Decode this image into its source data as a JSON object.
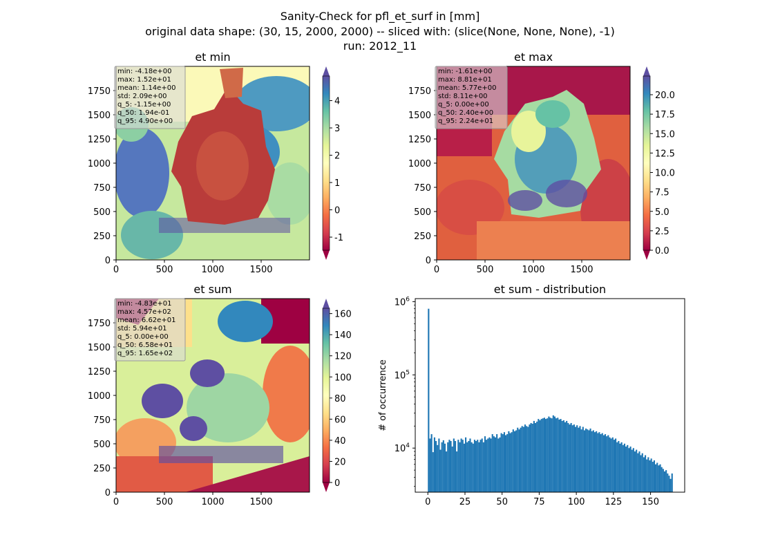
{
  "suptitle": [
    "Sanity-Check for pfl_et_surf in [mm]",
    "original data shape: (30, 15, 2000, 2000) -- sliced with: (slice(None, None, None), -1)",
    "run: 2012_11"
  ],
  "chart_data": [
    {
      "type": "heatmap",
      "title": "et min",
      "x_ticks": [
        "0",
        "500",
        "1000",
        "1500"
      ],
      "y_ticks": [
        "0",
        "250",
        "500",
        "750",
        "1000",
        "1250",
        "1500",
        "1750"
      ],
      "xlim": [
        0,
        2000
      ],
      "ylim": [
        0,
        2000
      ],
      "colormap": "Spectral",
      "color_range": [
        -1.48,
        4.9
      ],
      "colorbar_ticks": [
        "-1",
        "0",
        "1",
        "2",
        "3",
        "4"
      ],
      "colorbar_tick_values": [
        -1,
        0,
        1,
        2,
        3,
        4
      ],
      "colorbar_extend": "both",
      "stats": [
        "min: -4.18e+00",
        "max: 1.52e+01",
        "mean: 1.14e+00",
        "std: 2.09e+00",
        "q_5: -1.15e+00",
        "q_50: 1.94e-01",
        "q_95: 4.90e+00"
      ],
      "stats_placement": "top-left"
    },
    {
      "type": "heatmap",
      "title": "et max",
      "x_ticks": [
        "0",
        "500",
        "1000",
        "1500"
      ],
      "y_ticks": [
        "0",
        "250",
        "500",
        "750",
        "1000",
        "1250",
        "1500",
        "1750"
      ],
      "xlim": [
        0,
        2000
      ],
      "ylim": [
        0,
        2000
      ],
      "colormap": "Spectral",
      "color_range": [
        0,
        22.4
      ],
      "colorbar_ticks": [
        "0.0",
        "2.5",
        "5.0",
        "7.5",
        "10.0",
        "12.5",
        "15.0",
        "17.5",
        "20.0"
      ],
      "colorbar_tick_values": [
        0,
        2.5,
        5,
        7.5,
        10,
        12.5,
        15,
        17.5,
        20
      ],
      "colorbar_extend": "both",
      "stats": [
        "min: -1.61e+00",
        "max: 8.81e+01",
        "mean: 5.77e+00",
        "std: 8.11e+00",
        "q_5: 0.00e+00",
        "q_50: 2.40e+00",
        "q_95: 2.24e+01"
      ],
      "stats_placement": "top-left"
    },
    {
      "type": "heatmap",
      "title": "et sum",
      "x_ticks": [
        "0",
        "500",
        "1000",
        "1500"
      ],
      "y_ticks": [
        "0",
        "250",
        "500",
        "750",
        "1000",
        "1250",
        "1500",
        "1750"
      ],
      "xlim": [
        0,
        2000
      ],
      "ylim": [
        0,
        2000
      ],
      "colormap": "Spectral",
      "color_range": [
        0,
        165
      ],
      "colorbar_ticks": [
        "0",
        "20",
        "40",
        "60",
        "80",
        "100",
        "120",
        "140",
        "160"
      ],
      "colorbar_tick_values": [
        0,
        20,
        40,
        60,
        80,
        100,
        120,
        140,
        160
      ],
      "colorbar_extend": "both",
      "stats": [
        "min: -4.83e+01",
        "max: 4.57e+02",
        "mean: 6.62e+01",
        "std: 5.94e+01",
        "q_5: 0.00e+00",
        "q_50: 6.58e+01",
        "q_95: 1.65e+02"
      ],
      "stats_placement": "top-left"
    },
    {
      "type": "bar",
      "title": "et sum - distribution",
      "xlabel": "",
      "ylabel": "# of occurrence",
      "x_ticks": [
        "0",
        "25",
        "50",
        "75",
        "100",
        "125",
        "150"
      ],
      "x_tick_values": [
        0,
        25,
        50,
        75,
        100,
        125,
        150
      ],
      "y_ticks": [
        "10^4",
        "10^5",
        "10^6"
      ],
      "y_tick_values": [
        10000,
        100000,
        1000000
      ],
      "yscale": "log",
      "xlim": [
        -8.5,
        173
      ],
      "ylim": [
        2500,
        1100000
      ],
      "bar_color": "#1f77b4",
      "bin_range": [
        0,
        165
      ],
      "bin_count": 165,
      "values": [
        800000,
        13500,
        15500,
        8800,
        14000,
        12500,
        11000,
        13500,
        9500,
        12000,
        12800,
        11500,
        9000,
        12000,
        13000,
        12500,
        10500,
        13500,
        12500,
        9000,
        13000,
        12000,
        13500,
        13000,
        11500,
        14000,
        12000,
        12500,
        13500,
        12000,
        11500,
        13000,
        12500,
        13000,
        12000,
        13000,
        13500,
        12000,
        14500,
        13000,
        13500,
        14000,
        13500,
        15500,
        14500,
        14000,
        15500,
        13500,
        14000,
        16000,
        15500,
        16500,
        15000,
        15500,
        17000,
        16000,
        16500,
        18000,
        17000,
        17500,
        19000,
        18000,
        19000,
        20000,
        19500,
        21000,
        20000,
        19500,
        21000,
        22000,
        21500,
        23500,
        22000,
        23000,
        25000,
        24000,
        25000,
        25500,
        26000,
        25000,
        25500,
        27000,
        26000,
        25500,
        28000,
        27000,
        25500,
        26000,
        24500,
        25000,
        23500,
        24000,
        22500,
        23500,
        22000,
        21000,
        22000,
        20500,
        21000,
        19500,
        20500,
        19000,
        20000,
        18000,
        19500,
        17500,
        18500,
        18000,
        17500,
        18500,
        17000,
        17500,
        16500,
        17000,
        16000,
        16500,
        15500,
        16000,
        15000,
        15500,
        14500,
        15000,
        14000,
        13500,
        14000,
        13000,
        13500,
        12000,
        12500,
        11500,
        12000,
        11000,
        11500,
        10500,
        11000,
        10000,
        10500,
        9500,
        10000,
        9000,
        9500,
        8500,
        9000,
        8000,
        8500,
        7500,
        8000,
        7000,
        7500,
        6800,
        7200,
        6500,
        6800,
        6000,
        6300,
        5800,
        6000,
        5500,
        5200,
        4800,
        5000,
        4500,
        4200,
        3800,
        4500
      ]
    }
  ]
}
